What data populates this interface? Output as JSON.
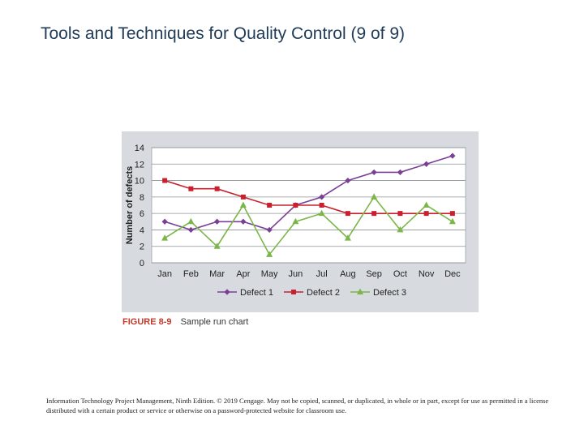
{
  "slide": {
    "title": "Tools and Techniques for Quality Control (9 of 9)",
    "footer": "Information Technology Project Management, Ninth Edition. © 2019 Cengage. May not be copied, scanned, or duplicated, in whole or in part, except for use as permitted in a license distributed with a certain product or service or otherwise on a password-protected website for classroom use."
  },
  "figure": {
    "label": "FIGURE 8-9",
    "caption": "Sample run chart"
  },
  "chart_data": {
    "type": "line",
    "categories": [
      "Jan",
      "Feb",
      "Mar",
      "Apr",
      "May",
      "Jun",
      "Jul",
      "Aug",
      "Sep",
      "Oct",
      "Nov",
      "Dec"
    ],
    "ylabel": "Number of defects",
    "xlabel": "",
    "ylim": [
      0,
      14
    ],
    "yticks": [
      0,
      2,
      4,
      6,
      8,
      10,
      12,
      14
    ],
    "grid": true,
    "legend": "bottom",
    "series": [
      {
        "name": "Defect 1",
        "color": "#7b3f98",
        "marker": "diamond",
        "values": [
          5,
          4,
          5,
          5,
          4,
          7,
          8,
          10,
          11,
          11,
          12,
          13
        ]
      },
      {
        "name": "Defect 2",
        "color": "#c8202f",
        "marker": "square",
        "values": [
          10,
          9,
          9,
          8,
          7,
          7,
          7,
          6,
          6,
          6,
          6,
          6
        ]
      },
      {
        "name": "Defect 3",
        "color": "#7ab648",
        "marker": "triangle",
        "values": [
          3,
          5,
          2,
          7,
          1,
          5,
          6,
          3,
          8,
          4,
          7,
          5
        ]
      }
    ]
  }
}
